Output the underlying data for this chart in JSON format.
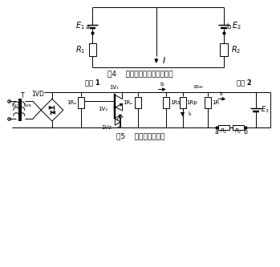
{
  "fig4_caption": "图4    电源串联示意图（反串）",
  "fig5_caption": "图5    电源反串等效图",
  "label_E1": "E1",
  "label_E2": "E2",
  "label_R1": "R1",
  "label_R2": "R2",
  "label_I": "I",
  "label_a": "a",
  "label_b": "b",
  "label_dianYuan1": "电源 1",
  "label_dianYuan2": "电源 2",
  "label_T": "T",
  "label_1VD": "1VD",
  "bg_color": "#ffffff",
  "line_color": "#000000",
  "line_width": 0.7
}
